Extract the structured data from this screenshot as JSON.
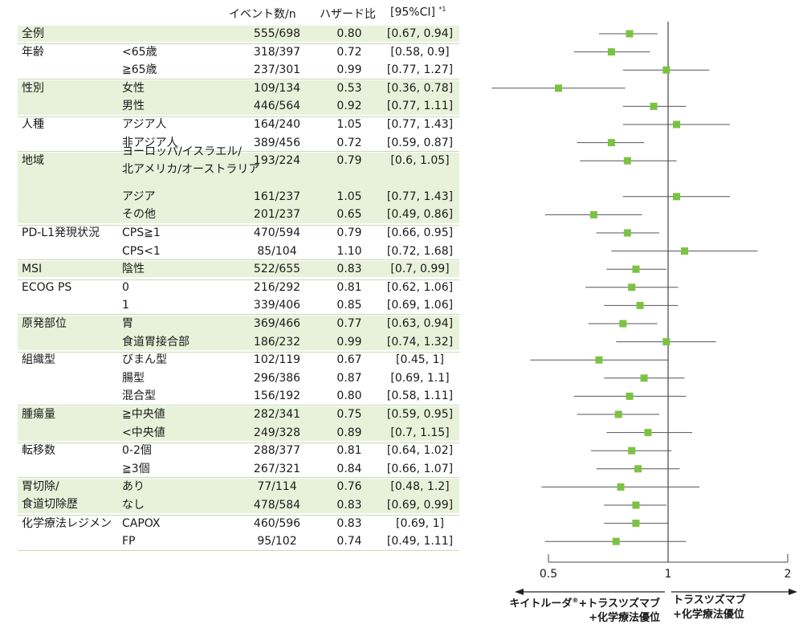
{
  "headers": {
    "events": "イベント数/n",
    "hr": "ハザード比",
    "ci": "[95%CI]",
    "ci_note": "*1"
  },
  "rows": [
    {
      "group": "全例",
      "subgroup": "",
      "events": "555/698",
      "hr_text": "0.80",
      "ci_text": "[0.67, 0.94]"
    },
    {
      "group": "年齢",
      "subgroup": "<65歳",
      "events": "318/397",
      "hr_text": "0.72",
      "ci_text": "[0.58, 0.9]"
    },
    {
      "group": "",
      "subgroup": "≧65歳",
      "events": "237/301",
      "hr_text": "0.99",
      "ci_text": "[0.77, 1.27]"
    },
    {
      "group": "性別",
      "subgroup": "女性",
      "events": "109/134",
      "hr_text": "0.53",
      "ci_text": "[0.36, 0.78]"
    },
    {
      "group": "",
      "subgroup": "男性",
      "events": "446/564",
      "hr_text": "0.92",
      "ci_text": "[0.77, 1.11]"
    },
    {
      "group": "人種",
      "subgroup": "アジア人",
      "events": "164/240",
      "hr_text": "1.05",
      "ci_text": "[0.77, 1.43]"
    },
    {
      "group": "",
      "subgroup": "非アジア人",
      "events": "389/456",
      "hr_text": "0.72",
      "ci_text": "[0.59, 0.87]"
    },
    {
      "group": "地域",
      "subgroup": "ヨーロッパ/イスラエル/",
      "subgroup2": "北アメリカ/オーストラリア",
      "events": "193/224",
      "hr_text": "0.79",
      "ci_text": "[0.6, 1.05]"
    },
    {
      "group": "",
      "subgroup": "アジア",
      "events": "161/237",
      "hr_text": "1.05",
      "ci_text": "[0.77, 1.43]"
    },
    {
      "group": "",
      "subgroup": "その他",
      "events": "201/237",
      "hr_text": "0.65",
      "ci_text": "[0.49, 0.86]"
    },
    {
      "group": "PD-L1発現状況",
      "subgroup": "CPS≧1",
      "events": "470/594",
      "hr_text": "0.79",
      "ci_text": "[0.66, 0.95]"
    },
    {
      "group": "",
      "subgroup": "CPS<1",
      "events": "85/104",
      "hr_text": "1.10",
      "ci_text": "[0.72, 1.68]"
    },
    {
      "group": "MSI",
      "subgroup": "陰性",
      "events": "522/655",
      "hr_text": "0.83",
      "ci_text": "[0.7, 0.99]"
    },
    {
      "group": "ECOG PS",
      "subgroup": "0",
      "events": "216/292",
      "hr_text": "0.81",
      "ci_text": "[0.62, 1.06]"
    },
    {
      "group": "",
      "subgroup": "1",
      "events": "339/406",
      "hr_text": "0.85",
      "ci_text": "[0.69, 1.06]"
    },
    {
      "group": "原発部位",
      "subgroup": "胃",
      "events": "369/466",
      "hr_text": "0.77",
      "ci_text": "[0.63, 0.94]"
    },
    {
      "group": "",
      "subgroup": "食道胃接合部",
      "events": "186/232",
      "hr_text": "0.99",
      "ci_text": "[0.74, 1.32]"
    },
    {
      "group": "組織型",
      "subgroup": "びまん型",
      "events": "102/119",
      "hr_text": "0.67",
      "ci_text": "[0.45, 1]"
    },
    {
      "group": "",
      "subgroup": "腸型",
      "events": "296/386",
      "hr_text": "0.87",
      "ci_text": "[0.69, 1.1]"
    },
    {
      "group": "",
      "subgroup": "混合型",
      "events": "156/192",
      "hr_text": "0.80",
      "ci_text": "[0.58, 1.11]"
    },
    {
      "group": "腫瘍量",
      "subgroup": "≧中央値",
      "events": "282/341",
      "hr_text": "0.75",
      "ci_text": "[0.59, 0.95]"
    },
    {
      "group": "",
      "subgroup": "<中央値",
      "events": "249/328",
      "hr_text": "0.89",
      "ci_text": "[0.7, 1.15]"
    },
    {
      "group": "転移数",
      "subgroup": "0-2個",
      "events": "288/377",
      "hr_text": "0.81",
      "ci_text": "[0.64, 1.02]"
    },
    {
      "group": "",
      "subgroup": "≧3個",
      "events": "267/321",
      "hr_text": "0.84",
      "ci_text": "[0.66, 1.07]"
    },
    {
      "group": "胃切除/",
      "group2": "食道切除歴",
      "subgroup": "あり",
      "events": "77/114",
      "hr_text": "0.76",
      "ci_text": "[0.48, 1.2]"
    },
    {
      "group": "",
      "subgroup": "なし",
      "events": "478/584",
      "hr_text": "0.83",
      "ci_text": "[0.69, 0.99]"
    },
    {
      "group": "化学療法レジメン",
      "subgroup": "CAPOX",
      "events": "460/596",
      "hr_text": "0.83",
      "ci_text": "[0.69, 1]"
    },
    {
      "group": "",
      "subgroup": "FP",
      "events": "95/102",
      "hr_text": "0.74",
      "ci_text": "[0.49, 1.11]"
    }
  ],
  "chart_data": {
    "type": "forest",
    "scale": "log",
    "xlim": [
      0.5,
      2
    ],
    "xticks": [
      {
        "value": 0.5,
        "label": "0.5"
      },
      {
        "value": 1,
        "label": "1"
      },
      {
        "value": 2,
        "label": "2"
      }
    ],
    "reference_line": 1,
    "marker_color": "#7cc242",
    "series": [
      {
        "label": "全例",
        "hr": 0.8,
        "lo": 0.67,
        "hi": 0.94
      },
      {
        "label": "<65歳",
        "hr": 0.72,
        "lo": 0.58,
        "hi": 0.9
      },
      {
        "label": "≧65歳",
        "hr": 0.99,
        "lo": 0.77,
        "hi": 1.27
      },
      {
        "label": "女性",
        "hr": 0.53,
        "lo": 0.36,
        "hi": 0.78
      },
      {
        "label": "男性",
        "hr": 0.92,
        "lo": 0.77,
        "hi": 1.11
      },
      {
        "label": "アジア人",
        "hr": 1.05,
        "lo": 0.77,
        "hi": 1.43
      },
      {
        "label": "非アジア人",
        "hr": 0.72,
        "lo": 0.59,
        "hi": 0.87
      },
      {
        "label": "ヨーロッパ/イスラエル/北アメリカ/オーストラリア",
        "hr": 0.79,
        "lo": 0.6,
        "hi": 1.05
      },
      {
        "label": "アジア",
        "hr": 1.05,
        "lo": 0.77,
        "hi": 1.43
      },
      {
        "label": "その他",
        "hr": 0.65,
        "lo": 0.49,
        "hi": 0.86
      },
      {
        "label": "CPS≧1",
        "hr": 0.79,
        "lo": 0.66,
        "hi": 0.95
      },
      {
        "label": "CPS<1",
        "hr": 1.1,
        "lo": 0.72,
        "hi": 1.68
      },
      {
        "label": "陰性",
        "hr": 0.83,
        "lo": 0.7,
        "hi": 0.99
      },
      {
        "label": "0",
        "hr": 0.81,
        "lo": 0.62,
        "hi": 1.06
      },
      {
        "label": "1",
        "hr": 0.85,
        "lo": 0.69,
        "hi": 1.06
      },
      {
        "label": "胃",
        "hr": 0.77,
        "lo": 0.63,
        "hi": 0.94
      },
      {
        "label": "食道胃接合部",
        "hr": 0.99,
        "lo": 0.74,
        "hi": 1.32
      },
      {
        "label": "びまん型",
        "hr": 0.67,
        "lo": 0.45,
        "hi": 1
      },
      {
        "label": "腸型",
        "hr": 0.87,
        "lo": 0.69,
        "hi": 1.1
      },
      {
        "label": "混合型",
        "hr": 0.8,
        "lo": 0.58,
        "hi": 1.11
      },
      {
        "label": "≧中央値",
        "hr": 0.75,
        "lo": 0.59,
        "hi": 0.95
      },
      {
        "label": "<中央値",
        "hr": 0.89,
        "lo": 0.7,
        "hi": 1.15
      },
      {
        "label": "0-2個",
        "hr": 0.81,
        "lo": 0.64,
        "hi": 1.02
      },
      {
        "label": "≧3個",
        "hr": 0.84,
        "lo": 0.66,
        "hi": 1.07
      },
      {
        "label": "あり",
        "hr": 0.76,
        "lo": 0.48,
        "hi": 1.2
      },
      {
        "label": "なし",
        "hr": 0.83,
        "lo": 0.69,
        "hi": 0.99
      },
      {
        "label": "CAPOX",
        "hr": 0.83,
        "lo": 0.69,
        "hi": 1
      },
      {
        "label": "FP",
        "hr": 0.74,
        "lo": 0.49,
        "hi": 1.11
      }
    ],
    "favors_left": {
      "line1": "キイトルーダ",
      "reg": "®",
      "line1b": "+トラスツズマブ",
      "line2": "+化学療法優位"
    },
    "favors_right": {
      "line1": "トラスツズマブ",
      "line2": "+化学療法優位"
    }
  }
}
